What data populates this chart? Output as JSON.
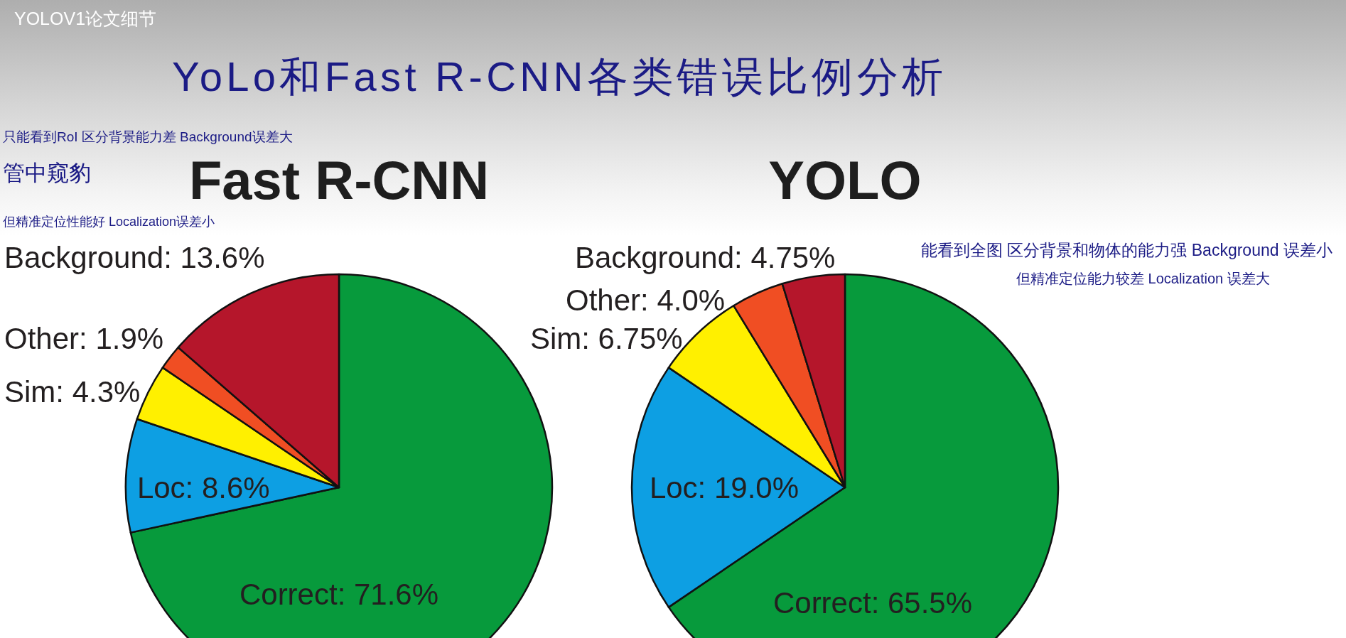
{
  "chart_data": [
    {
      "type": "other",
      "title": "YoLo和Fast R-CNN各类错误比例分析",
      "annotations": [
        "YOLOV1论文细节"
      ]
    },
    {
      "type": "pie",
      "title": "Fast R-CNN",
      "categories": [
        "Correct",
        "Loc",
        "Sim",
        "Other",
        "Background"
      ],
      "values": [
        71.6,
        8.6,
        4.3,
        1.9,
        13.6
      ],
      "colors": [
        "#079a3c",
        "#0d9fe3",
        "#fff000",
        "#f04e23",
        "#b5162b"
      ],
      "value_labels": [
        "71.6%",
        "8.6%",
        "4.3%",
        "1.9%",
        "13.6%"
      ],
      "annotations": [
        "只能看到RoI 区分背景能力差 Background误差大",
        "管中窥豹",
        "但精准定位性能好 Localization误差小"
      ]
    },
    {
      "type": "pie",
      "title": "YOLO",
      "categories": [
        "Correct",
        "Loc",
        "Sim",
        "Other",
        "Background"
      ],
      "values": [
        65.5,
        19.0,
        6.75,
        4.0,
        4.75
      ],
      "colors": [
        "#079a3c",
        "#0d9fe3",
        "#fff000",
        "#f04e23",
        "#b5162b"
      ],
      "value_labels": [
        "65.5%",
        "19.0%",
        "6.75%",
        "4.0%",
        "4.75%"
      ],
      "annotations": [
        "能看到全图  区分背景和物体的能力强 Background 误差小",
        "但精准定位能力较差  Localization 误差大"
      ]
    }
  ]
}
